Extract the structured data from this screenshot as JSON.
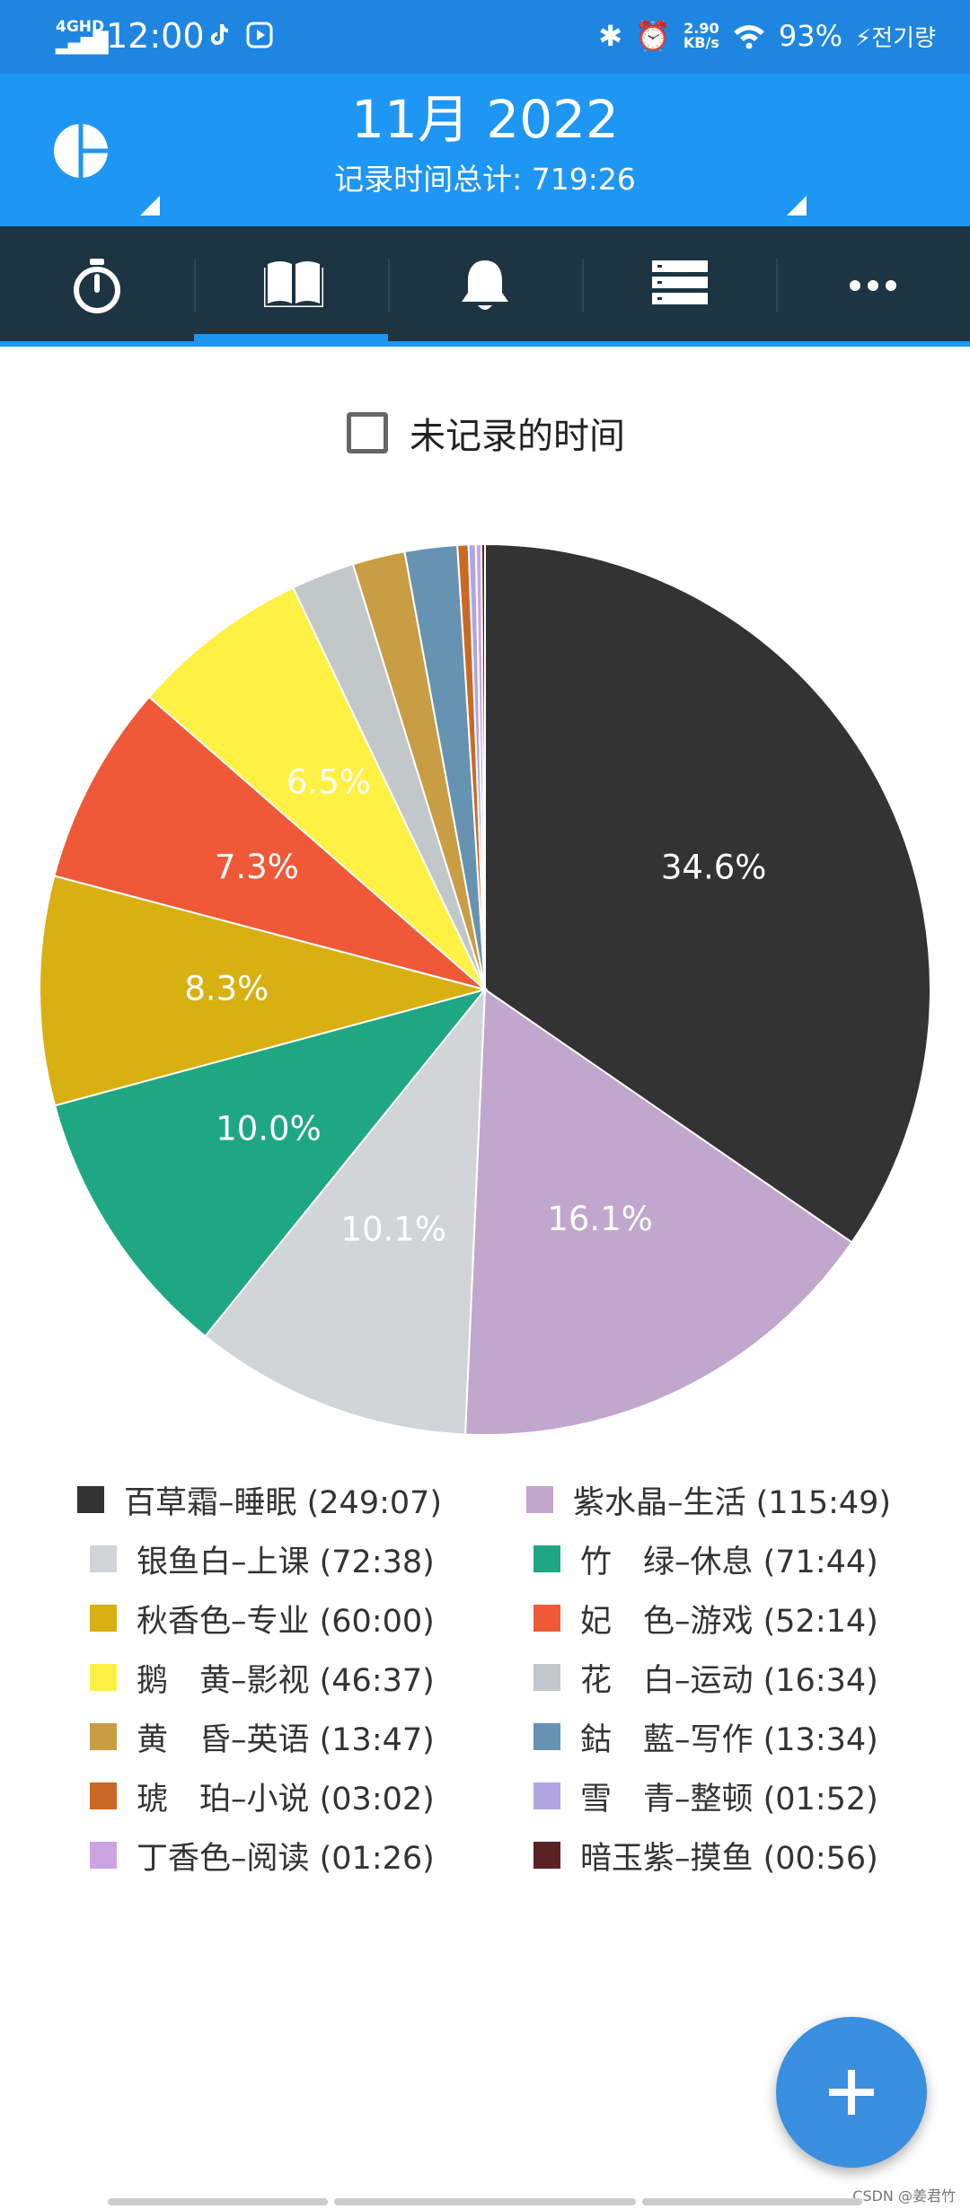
{
  "status_bar": {
    "network": "4GHD",
    "time": "12:00",
    "speed_value": "2.90",
    "speed_unit": "KB/s",
    "battery": "93%",
    "charging_label": "전기량"
  },
  "header": {
    "month": "11月 2022",
    "total_label": "记录时间总计: 719:26"
  },
  "tabs": [
    {
      "icon": "stopwatch-icon"
    },
    {
      "icon": "book-icon",
      "selected": true
    },
    {
      "icon": "bell-icon"
    },
    {
      "icon": "list-icon"
    },
    {
      "icon": "more-icon"
    }
  ],
  "filter": {
    "unrecorded_label": "未记录的时间",
    "checked": false
  },
  "chart_data": {
    "type": "pie",
    "slices": [
      {
        "label": "百草霜–睡眠 (249:07)",
        "value": 34.6,
        "color": "#333333",
        "pct_label": "34.6%"
      },
      {
        "label": "紫水晶–生活 (115:49)",
        "value": 16.1,
        "color": "#c1a6cd",
        "pct_label": "16.1%"
      },
      {
        "label": "银鱼白–上课 (72:38)",
        "value": 10.1,
        "color": "#d1d5d8",
        "pct_label": "10.1%"
      },
      {
        "label": "竹　绿–休息 (71:44)",
        "value": 10.0,
        "color": "#1fa783",
        "pct_label": "10.0%"
      },
      {
        "label": "秋香色–专业 (60:00)",
        "value": 8.3,
        "color": "#d9b011",
        "pct_label": "8.3%"
      },
      {
        "label": "妃　色–游戏 (52:14)",
        "value": 7.3,
        "color": "#ef5938",
        "pct_label": "7.3%"
      },
      {
        "label": "鹅　黄–影视 (46:37)",
        "value": 6.5,
        "color": "#fff143",
        "pct_label": "6.5%"
      },
      {
        "label": "花　白–运动 (16:34)",
        "value": 2.3,
        "color": "#c2c7c9",
        "pct_label": ""
      },
      {
        "label": "黄　昏–英语 (13:47)",
        "value": 1.9,
        "color": "#c99d43",
        "pct_label": ""
      },
      {
        "label": "鈷　藍–写作 (13:34)",
        "value": 1.9,
        "color": "#6793b3",
        "pct_label": ""
      },
      {
        "label": "琥　珀–小说 (03:02)",
        "value": 0.4,
        "color": "#ca6924",
        "pct_label": ""
      },
      {
        "label": "雪　青–整顿 (01:52)",
        "value": 0.26,
        "color": "#b0a4e3",
        "pct_label": ""
      },
      {
        "label": "丁香色–阅读 (01:26)",
        "value": 0.2,
        "color": "#cca4e3",
        "pct_label": ""
      },
      {
        "label": "暗玉紫–摸鱼 (00:56)",
        "value": 0.13,
        "color": "#5c2223",
        "pct_label": ""
      }
    ]
  },
  "watermark": "CSDN @姜君竹"
}
